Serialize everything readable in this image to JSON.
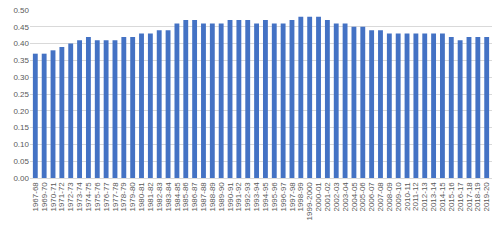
{
  "chart_data": {
    "type": "bar",
    "categories": [
      "1967-68",
      "1969-70",
      "1970-71",
      "1971-72",
      "1972-73",
      "1973-74",
      "1974-75",
      "1975-76",
      "1976-77",
      "1977-78",
      "1978-79",
      "1979-80",
      "1980-81",
      "1981-82",
      "1982-83",
      "1983-84",
      "1984-85",
      "1985-86",
      "1986-87",
      "1987-88",
      "1988-89",
      "1989-90",
      "1990-91",
      "1991-92",
      "1992-93",
      "1993-94",
      "1994-95",
      "1995-96",
      "1996-97",
      "1997-98",
      "1998-99",
      "1999-2000",
      "2000-01",
      "2001-02",
      "2002-03",
      "2003-04",
      "2004-05",
      "2005-06",
      "2006-07",
      "2007-08",
      "2008-09",
      "2009-10",
      "2010-11",
      "2011-12",
      "2012-13",
      "2013-14",
      "2014-15",
      "2015-16",
      "2016-17",
      "2017-18",
      "2018-19",
      "2019-20"
    ],
    "values": [
      0.37,
      0.37,
      0.38,
      0.39,
      0.4,
      0.41,
      0.42,
      0.41,
      0.41,
      0.41,
      0.42,
      0.42,
      0.43,
      0.43,
      0.44,
      0.44,
      0.46,
      0.47,
      0.47,
      0.46,
      0.46,
      0.46,
      0.47,
      0.47,
      0.47,
      0.46,
      0.47,
      0.46,
      0.46,
      0.47,
      0.48,
      0.48,
      0.48,
      0.47,
      0.46,
      0.46,
      0.45,
      0.45,
      0.44,
      0.44,
      0.43,
      0.43,
      0.43,
      0.43,
      0.43,
      0.43,
      0.43,
      0.42,
      0.41,
      0.42,
      0.42,
      0.42
    ],
    "color": "#4472c4",
    "ylim": [
      0,
      0.5
    ],
    "yticks": [
      {
        "value": 0,
        "label": "0.00"
      },
      {
        "value": 0.05,
        "label": "0.05"
      },
      {
        "value": 0.1,
        "label": "0.10"
      },
      {
        "value": 0.15,
        "label": "0.15"
      },
      {
        "value": 0.2,
        "label": "0.20"
      },
      {
        "value": 0.25,
        "label": "0.25"
      },
      {
        "value": 0.3,
        "label": "0.30"
      },
      {
        "value": 0.35,
        "label": "0.35"
      },
      {
        "value": 0.4,
        "label": "0.40"
      },
      {
        "value": 0.45,
        "label": "0.45"
      },
      {
        "value": 0.5,
        "label": "0.50"
      }
    ],
    "grid": true
  }
}
